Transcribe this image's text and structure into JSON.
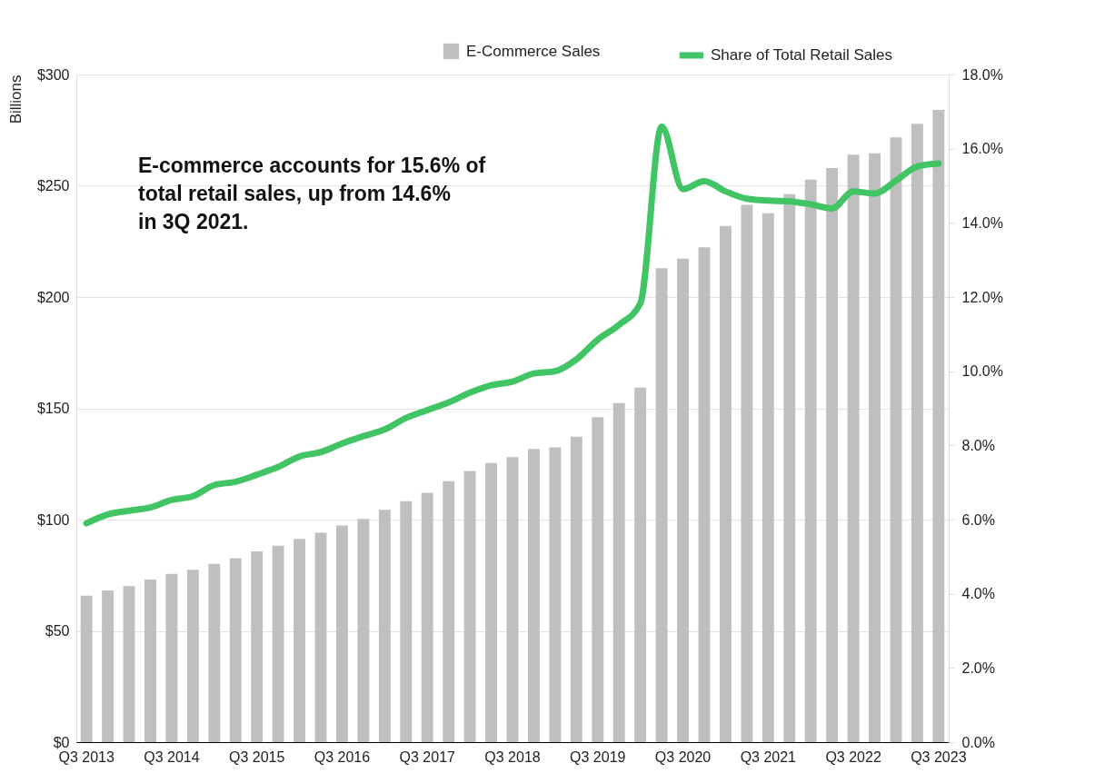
{
  "chart_data": {
    "type": "bar",
    "categories": [
      "Q3 2013",
      null,
      null,
      null,
      "Q3 2014",
      null,
      null,
      null,
      "Q3 2015",
      null,
      null,
      null,
      "Q3 2016",
      null,
      null,
      null,
      "Q3 2017",
      null,
      null,
      null,
      "Q3 2018",
      null,
      null,
      null,
      "Q3 2019",
      null,
      null,
      null,
      "Q3 2020",
      null,
      null,
      null,
      "Q3 2021",
      null,
      null,
      null,
      "Q3 2022",
      null,
      null,
      null,
      "Q3 2023"
    ],
    "series": [
      {
        "name": "E-Commerce Sales",
        "color": "#bfbfbf",
        "values": [
          65.8,
          68.2,
          70.1,
          73.1,
          75.6,
          77.5,
          80.1,
          82.7,
          85.7,
          88.3,
          91.3,
          94.1,
          97.3,
          100.3,
          104.4,
          108.3,
          112.0,
          117.2,
          121.8,
          125.4,
          128.1,
          131.7,
          132.5,
          137.2,
          146.0,
          152.3,
          159.3,
          213.0,
          217.2,
          222.3,
          231.9,
          241.4,
          237.7,
          246.2,
          252.8,
          258.0,
          264.0,
          264.6,
          271.7,
          277.9,
          284.1
        ]
      },
      {
        "name": "Share of Total Retail Sales",
        "type": "line",
        "axis": "y2",
        "color": "#41c464",
        "values": [
          5.9,
          6.14,
          6.24,
          6.33,
          6.53,
          6.63,
          6.93,
          7.02,
          7.21,
          7.42,
          7.7,
          7.82,
          8.05,
          8.25,
          8.43,
          8.74,
          8.95,
          9.16,
          9.42,
          9.62,
          9.72,
          9.94,
          10.0,
          10.32,
          10.85,
          11.25,
          11.83,
          16.6,
          14.91,
          15.12,
          14.85,
          14.65,
          14.6,
          14.58,
          14.5,
          14.39,
          14.85,
          14.79,
          15.14,
          15.52,
          15.6
        ]
      }
    ],
    "ylabel": "Billions",
    "ylim": [
      0,
      300
    ],
    "yticks": [
      {
        "value": 0,
        "label": "$0"
      },
      {
        "value": 50,
        "label": "$50"
      },
      {
        "value": 100,
        "label": "$100"
      },
      {
        "value": 150,
        "label": "$150"
      },
      {
        "value": 200,
        "label": "$200"
      },
      {
        "value": 250,
        "label": "$250"
      },
      {
        "value": 300,
        "label": "$300"
      }
    ],
    "y2lim": [
      0,
      18
    ],
    "y2ticks": [
      {
        "value": 0,
        "label": "0.0%"
      },
      {
        "value": 2,
        "label": "2.0%"
      },
      {
        "value": 4,
        "label": "4.0%"
      },
      {
        "value": 6,
        "label": "6.0%"
      },
      {
        "value": 8,
        "label": "8.0%"
      },
      {
        "value": 10,
        "label": "10.0%"
      },
      {
        "value": 12,
        "label": "12.0%"
      },
      {
        "value": 14,
        "label": "14.0%"
      },
      {
        "value": 16,
        "label": "16.0%"
      },
      {
        "value": 18,
        "label": "18.0%"
      }
    ],
    "annotations": [
      "E-commerce accounts for 15.6% of total retail sales, up from 14.6% in 3Q 2021."
    ],
    "grid": "y",
    "legend": "top right"
  }
}
